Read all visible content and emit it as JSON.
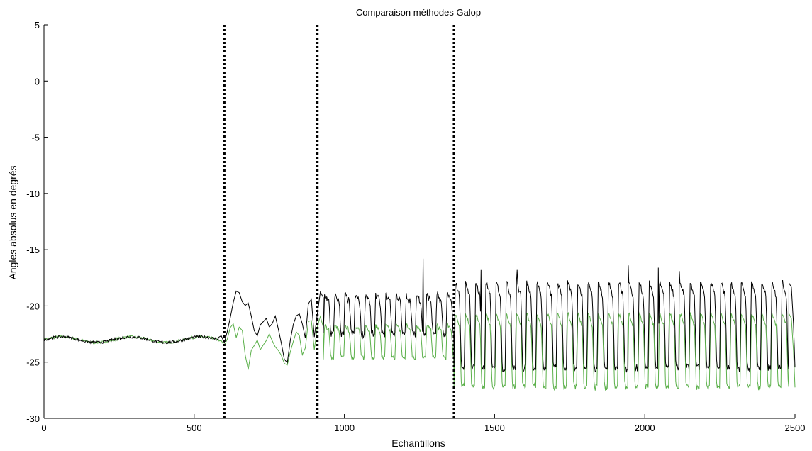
{
  "chart_data": {
    "type": "line",
    "title": "Comparaison méthodes Galop",
    "xlabel": "Echantillons",
    "ylabel": "Angles absolus en degrés",
    "xlim": [
      0,
      2500
    ],
    "ylim": [
      -30,
      5
    ],
    "grid": false,
    "xticks": [
      0,
      500,
      1000,
      1500,
      2000,
      2500
    ],
    "yticks": [
      5,
      0,
      -5,
      -10,
      -15,
      -20,
      -25,
      -30
    ],
    "vlines": [
      600,
      910,
      1365
    ],
    "series": [
      {
        "color": "#000000",
        "segments": [
          {
            "type": "flat",
            "from": 0,
            "to": 580,
            "mean": -23.0,
            "noise": 0.25
          },
          {
            "type": "points",
            "points": [
              [
                580,
                -22.9
              ],
              [
                590,
                -22.6
              ],
              [
                600,
                -23.3
              ],
              [
                610,
                -22.2
              ],
              [
                620,
                -21.0
              ],
              [
                630,
                -19.8
              ],
              [
                640,
                -18.7
              ],
              [
                650,
                -18.8
              ],
              [
                660,
                -19.6
              ],
              [
                670,
                -20.1
              ],
              [
                680,
                -19.7
              ],
              [
                690,
                -20.8
              ],
              [
                700,
                -22.2
              ],
              [
                710,
                -22.8
              ],
              [
                720,
                -21.8
              ],
              [
                730,
                -21.4
              ],
              [
                740,
                -21.2
              ],
              [
                750,
                -21.8
              ],
              [
                760,
                -21.6
              ],
              [
                770,
                -21.0
              ],
              [
                780,
                -22.0
              ],
              [
                790,
                -23.2
              ],
              [
                800,
                -24.8
              ],
              [
                810,
                -25.2
              ],
              [
                820,
                -23.0
              ],
              [
                830,
                -21.6
              ],
              [
                840,
                -21.0
              ],
              [
                850,
                -20.8
              ],
              [
                860,
                -21.5
              ],
              [
                870,
                -22.8
              ],
              [
                880,
                -19.8
              ],
              [
                890,
                -19.5
              ],
              [
                900,
                -22.8
              ],
              [
                910,
                -20.8
              ],
              [
                920,
                -18.8
              ],
              [
                930,
                -19.3
              ]
            ]
          },
          {
            "type": "periodic",
            "from": 930,
            "to": 1365,
            "period": 34,
            "low": -22.5,
            "high": -19.0,
            "noise": 0.6
          },
          {
            "type": "periodic",
            "from": 1365,
            "to": 2480,
            "period": 34,
            "low": -25.5,
            "high": -17.8,
            "noise": 0.5
          },
          {
            "type": "points",
            "points": [
              [
                2480,
                -18.0
              ],
              [
                2488,
                -18.4
              ],
              [
                2495,
                -21.5
              ],
              [
                2500,
                -25.5
              ]
            ]
          }
        ],
        "peaks": [
          [
            1262,
            -15.8
          ],
          [
            1455,
            -16.8
          ],
          [
            1575,
            -16.8
          ],
          [
            1945,
            -16.4
          ],
          [
            2045,
            -16.6
          ],
          [
            2115,
            -16.9
          ]
        ]
      },
      {
        "color": "#5bb04a",
        "segments": [
          {
            "type": "flat",
            "from": 0,
            "to": 580,
            "mean": -23.0,
            "noise": 0.22
          },
          {
            "type": "points",
            "points": [
              [
                580,
                -23.0
              ],
              [
                590,
                -23.2
              ],
              [
                600,
                -23.6
              ],
              [
                610,
                -23.0
              ],
              [
                620,
                -22.0
              ],
              [
                630,
                -21.6
              ],
              [
                640,
                -22.8
              ],
              [
                650,
                -22.0
              ],
              [
                660,
                -22.2
              ],
              [
                670,
                -24.5
              ],
              [
                680,
                -25.6
              ],
              [
                690,
                -24.0
              ],
              [
                700,
                -23.5
              ],
              [
                710,
                -23.0
              ],
              [
                720,
                -23.8
              ],
              [
                730,
                -23.5
              ],
              [
                740,
                -23.0
              ],
              [
                750,
                -22.6
              ],
              [
                760,
                -23.2
              ],
              [
                770,
                -23.6
              ],
              [
                780,
                -24.0
              ],
              [
                790,
                -24.5
              ],
              [
                800,
                -25.0
              ],
              [
                810,
                -25.2
              ],
              [
                820,
                -24.2
              ],
              [
                830,
                -23.0
              ],
              [
                840,
                -22.2
              ],
              [
                850,
                -22.6
              ],
              [
                860,
                -24.2
              ],
              [
                870,
                -23.8
              ],
              [
                880,
                -21.5
              ],
              [
                890,
                -21.2
              ],
              [
                900,
                -23.8
              ],
              [
                910,
                -22.0
              ],
              [
                920,
                -21.0
              ],
              [
                930,
                -21.8
              ]
            ]
          },
          {
            "type": "periodic",
            "from": 930,
            "to": 1365,
            "period": 34,
            "low": -24.6,
            "high": -21.7,
            "noise": 0.4
          },
          {
            "type": "periodic",
            "from": 1365,
            "to": 2480,
            "period": 34,
            "low": -27.2,
            "high": -20.6,
            "noise": 0.35
          },
          {
            "type": "points",
            "points": [
              [
                2480,
                -20.6
              ],
              [
                2488,
                -21.0
              ],
              [
                2495,
                -24.0
              ],
              [
                2500,
                -27.3
              ]
            ]
          }
        ],
        "peaks": []
      }
    ]
  }
}
